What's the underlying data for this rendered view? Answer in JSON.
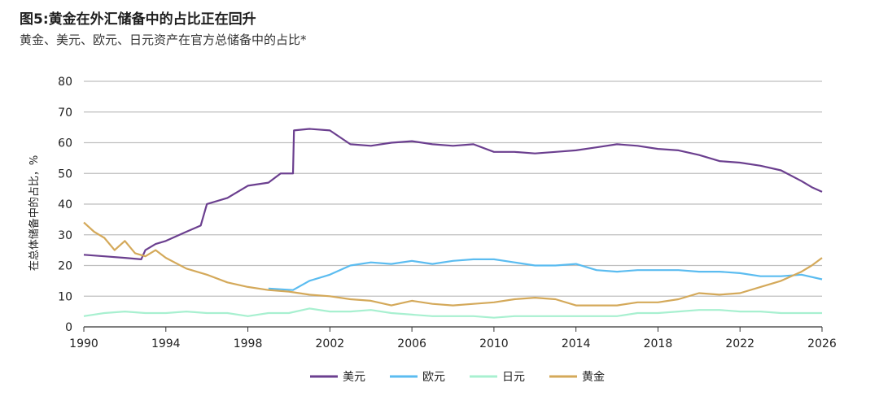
{
  "title": "图5:黄金在外汇储备中的占比正在回升",
  "subtitle": "黄金、美元、欧元、日元资产在官方总储备中的占比*",
  "chart_data": {
    "type": "line",
    "ylabel": "在总体储备中的占比，%",
    "ylim": [
      0,
      80
    ],
    "xlim": [
      1990,
      2026
    ],
    "y_ticks": [
      0,
      10,
      20,
      30,
      40,
      50,
      60,
      70,
      80
    ],
    "x_ticks": [
      1990,
      1994,
      1998,
      2002,
      2006,
      2010,
      2014,
      2018,
      2022,
      2026
    ],
    "grid": "horizontal",
    "legend": "bottom-center",
    "series": [
      {
        "name": "美元",
        "color": "#6b3f8f",
        "x": [
          1990,
          1991,
          1992,
          1992.8,
          1993,
          1993.5,
          1994,
          1995,
          1995.7,
          1996,
          1997,
          1998,
          1999,
          1999.6,
          2000.2,
          2000.25,
          2001,
          2002,
          2003,
          2004,
          2005,
          2006,
          2007,
          2008,
          2009,
          2010,
          2011,
          2012,
          2013,
          2014,
          2015,
          2016,
          2017,
          2018,
          2019,
          2020,
          2021,
          2022,
          2023,
          2024,
          2025,
          2025.5,
          2026
        ],
        "values": [
          23.5,
          23,
          22.5,
          22,
          25,
          27,
          28,
          31,
          33,
          40,
          42,
          46,
          47,
          50,
          50,
          64,
          64.5,
          64,
          59.5,
          59,
          60,
          60.5,
          59.5,
          59,
          59.5,
          57,
          57,
          56.5,
          57,
          57.5,
          58.5,
          59.5,
          59,
          58,
          57.5,
          56,
          54,
          53.5,
          52.5,
          51,
          47.5,
          45.5,
          44
        ]
      },
      {
        "name": "欧元",
        "color": "#5bbcf0",
        "x": [
          1999,
          2000.2,
          2001,
          2002,
          2003,
          2004,
          2005,
          2006,
          2007,
          2008,
          2009,
          2010,
          2011,
          2012,
          2013,
          2014,
          2015,
          2016,
          2017,
          2018,
          2019,
          2020,
          2021,
          2022,
          2023,
          2024,
          2025,
          2026
        ],
        "values": [
          12.5,
          12,
          15,
          17,
          20,
          21,
          20.5,
          21.5,
          20.5,
          21.5,
          22,
          22,
          21,
          20,
          20,
          20.5,
          18.5,
          18,
          18.5,
          18.5,
          18.5,
          18,
          18,
          17.5,
          16.5,
          16.5,
          17,
          15.5
        ]
      },
      {
        "name": "日元",
        "color": "#a8f0d0",
        "x": [
          1990,
          1991,
          1992,
          1993,
          1994,
          1995,
          1996,
          1997,
          1998,
          1999,
          2000,
          2001,
          2002,
          2003,
          2004,
          2005,
          2006,
          2007,
          2008,
          2009,
          2010,
          2011,
          2012,
          2013,
          2014,
          2015,
          2016,
          2017,
          2018,
          2019,
          2020,
          2021,
          2022,
          2023,
          2024,
          2025,
          2026
        ],
        "values": [
          3.5,
          4.5,
          5,
          4.5,
          4.5,
          5,
          4.5,
          4.5,
          3.5,
          4.5,
          4.5,
          6,
          5,
          5,
          5.5,
          4.5,
          4,
          3.5,
          3.5,
          3.5,
          3,
          3.5,
          3.5,
          3.5,
          3.5,
          3.5,
          3.5,
          4.5,
          4.5,
          5,
          5.5,
          5.5,
          5,
          5,
          4.5,
          4.5,
          4.5
        ]
      },
      {
        "name": "黄金",
        "color": "#d4a95a",
        "x": [
          1990,
          1990.5,
          1991,
          1991.5,
          1992,
          1992.5,
          1993,
          1993.5,
          1994,
          1995,
          1996,
          1997,
          1998,
          1999,
          2000,
          2001,
          2002,
          2003,
          2004,
          2005,
          2006,
          2007,
          2008,
          2009,
          2010,
          2011,
          2012,
          2013,
          2014,
          2015,
          2016,
          2017,
          2018,
          2019,
          2020,
          2021,
          2022,
          2023,
          2024,
          2025,
          2025.5,
          2026
        ],
        "values": [
          34,
          31,
          29,
          25,
          28,
          24,
          23,
          25,
          22.5,
          19,
          17,
          14.5,
          13,
          12,
          11.5,
          10.5,
          10,
          9,
          8.5,
          7,
          8.5,
          7.5,
          7,
          7.5,
          8,
          9,
          9.5,
          9,
          7,
          7,
          7,
          8,
          8,
          9,
          11,
          10.5,
          11,
          13,
          15,
          18,
          20,
          22.5
        ]
      }
    ]
  }
}
